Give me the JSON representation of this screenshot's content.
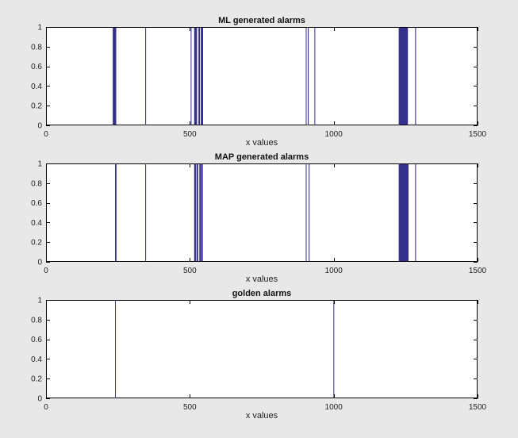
{
  "figure": {
    "background": "#e8e8e8",
    "axes_background": "#ffffff",
    "bar_color": "#35308a"
  },
  "chart_data": [
    {
      "type": "bar",
      "title": "ML generated alarms",
      "xlabel": "x values",
      "ylabel": "",
      "xlim": [
        0,
        1500
      ],
      "ylim": [
        0,
        1
      ],
      "xticks": [
        0,
        500,
        1000,
        1500
      ],
      "yticks": [
        0,
        0.2,
        0.4,
        0.6,
        0.8,
        1
      ],
      "yticklabels": [
        "0",
        "0.2",
        "0.4",
        "0.6",
        "0.8",
        "1"
      ],
      "grid": false,
      "alarm_intervals": [
        [
          232,
          244
        ],
        [
          345,
          347
        ],
        [
          503,
          505
        ],
        [
          515,
          525
        ],
        [
          530,
          535
        ],
        [
          538,
          546
        ],
        [
          903,
          905
        ],
        [
          910,
          913
        ],
        [
          933,
          935
        ],
        [
          1226,
          1258
        ],
        [
          1283,
          1286
        ]
      ],
      "alarm_value": 1
    },
    {
      "type": "bar",
      "title": "MAP generated alarms",
      "xlabel": "x values",
      "ylabel": "",
      "xlim": [
        0,
        1500
      ],
      "ylim": [
        0,
        1
      ],
      "xticks": [
        0,
        500,
        1000,
        1500
      ],
      "yticks": [
        0,
        0.2,
        0.4,
        0.6,
        0.8,
        1
      ],
      "yticklabels": [
        "0",
        "0.2",
        "0.4",
        "0.6",
        "0.8",
        "1"
      ],
      "grid": false,
      "alarm_intervals": [
        [
          240,
          245
        ],
        [
          345,
          347
        ],
        [
          515,
          522
        ],
        [
          524,
          529
        ],
        [
          533,
          539
        ],
        [
          540,
          545
        ],
        [
          903,
          905
        ],
        [
          913,
          916
        ],
        [
          1226,
          1260
        ],
        [
          1283,
          1286
        ]
      ],
      "alarm_value": 1
    },
    {
      "type": "bar",
      "title": "golden alarms",
      "xlabel": "x values",
      "ylabel": "",
      "xlim": [
        0,
        1500
      ],
      "ylim": [
        0,
        1
      ],
      "xticks": [
        0,
        500,
        1000,
        1500
      ],
      "yticks": [
        0,
        0.2,
        0.4,
        0.6,
        0.8,
        1
      ],
      "yticklabels": [
        "0",
        "0.2",
        "0.4",
        "0.6",
        "0.8",
        "1"
      ],
      "grid": false,
      "alarm_intervals": [
        [
          240,
          242
        ],
        [
          999,
          1001
        ]
      ],
      "alarm_value": 1
    }
  ]
}
